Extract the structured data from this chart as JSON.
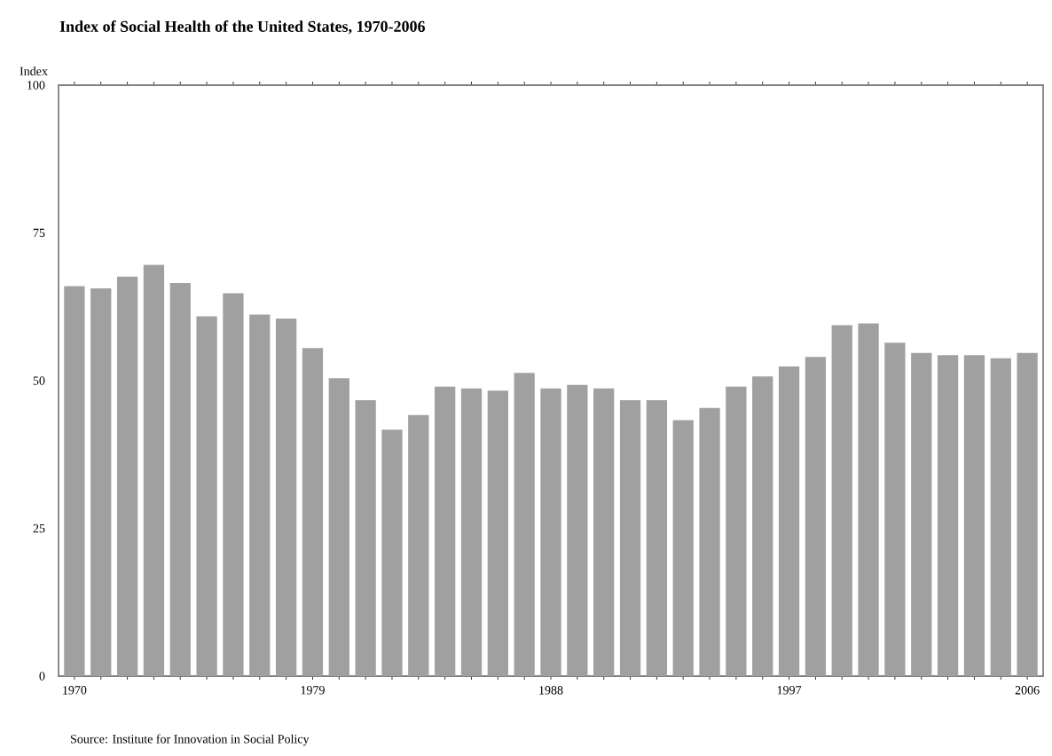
{
  "chart_data": {
    "type": "bar",
    "title": "Index  of Social Health of the United States, 1970-2006",
    "ylabel": "Index",
    "categories": [
      "1970",
      null,
      null,
      null,
      null,
      null,
      null,
      null,
      null,
      "1979",
      null,
      null,
      null,
      null,
      null,
      null,
      null,
      null,
      "1988",
      null,
      null,
      null,
      null,
      null,
      null,
      null,
      null,
      "1997",
      null,
      null,
      null,
      null,
      null,
      null,
      null,
      null,
      "2006"
    ],
    "values": [
      66,
      65.6,
      67.6,
      69.6,
      66.5,
      60.9,
      64.8,
      61.2,
      60.5,
      55.5,
      50.4,
      46.7,
      41.7,
      44.2,
      49,
      48.7,
      48.3,
      51.3,
      48.7,
      49.3,
      48.7,
      46.7,
      46.7,
      43.3,
      45.4,
      49,
      50.7,
      52.4,
      54,
      59.4,
      59.7,
      56.4,
      54.7,
      54.3,
      54.3,
      53.8,
      54.7
    ],
    "color": "#a0a0a0",
    "ylim": [
      0,
      100
    ],
    "yticks": [
      0,
      25,
      50,
      75,
      100
    ],
    "annotations": [
      "Source: Institute for Innovation in Social Policy"
    ]
  }
}
